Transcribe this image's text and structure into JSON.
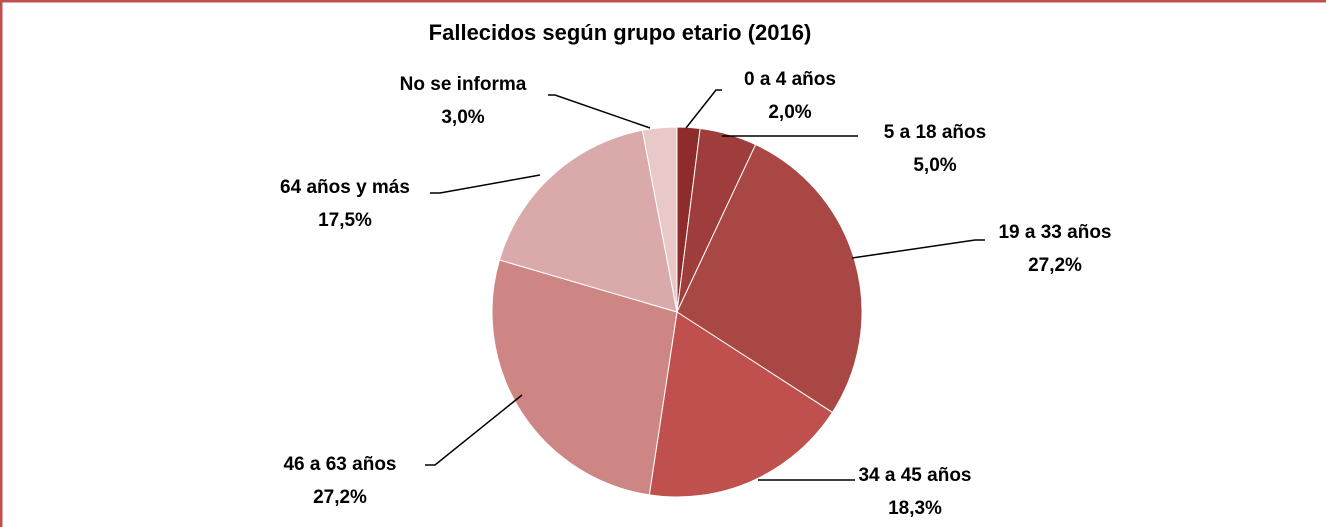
{
  "chart_data": {
    "type": "pie",
    "title": "Fallecidos según grupo etario (2016)",
    "categories": [
      "0 a 4 años",
      "5 a 18 años",
      "19 a 33 años",
      "34 a 45 años",
      "46 a 63 años",
      "64 años y más",
      "No se informa"
    ],
    "values": [
      2.0,
      5.0,
      27.2,
      18.3,
      27.2,
      17.5,
      3.0
    ],
    "value_labels": [
      "2,0%",
      "5,0%",
      "27,2%",
      "18,3%",
      "27,2%",
      "17,5%",
      "3,0%"
    ],
    "colors": [
      "#8e2b2b",
      "#9e3d3b",
      "#a94744",
      "#c0504d",
      "#cd8684",
      "#d9aaa9",
      "#e8c9c8"
    ]
  }
}
